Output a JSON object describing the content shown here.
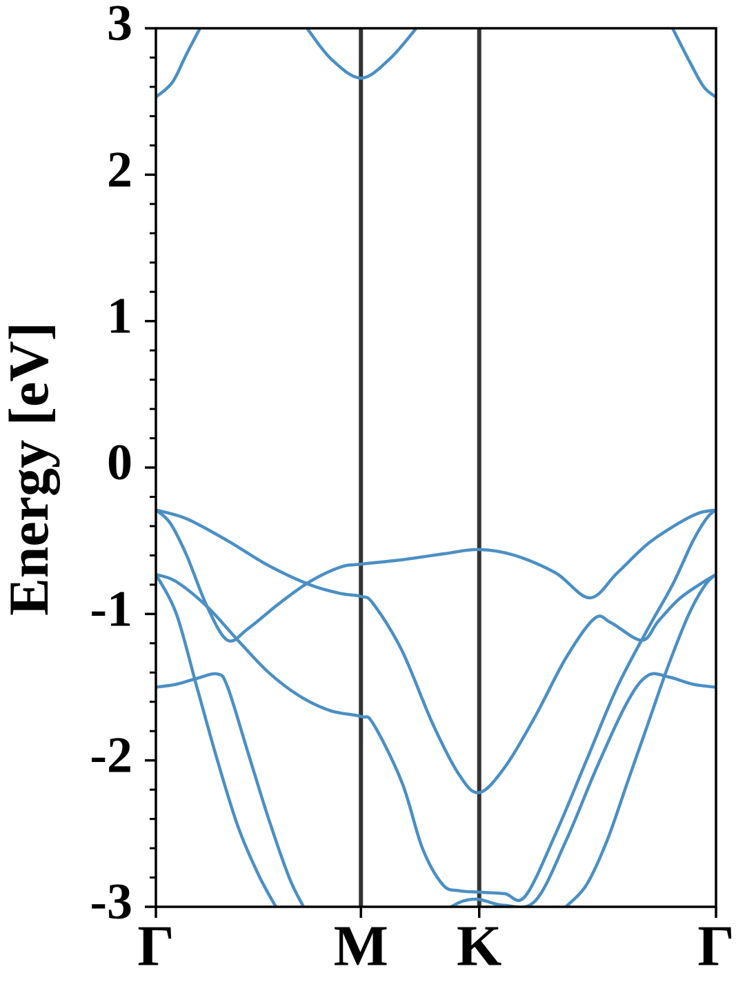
{
  "chart_data": {
    "type": "line",
    "ylabel": "Energy [eV]",
    "xlim": [
      0,
      2.732
    ],
    "xticks": [
      {
        "value": 0,
        "label": "Γ"
      },
      {
        "value": 1,
        "label": "M"
      },
      {
        "value": 1.577,
        "label": "K"
      },
      {
        "value": 2.732,
        "label": "Γ"
      }
    ],
    "xgrid": true,
    "ylim": [
      -3,
      3
    ],
    "yticks": [
      3,
      2,
      1,
      0,
      -1,
      -2,
      -3
    ],
    "yminorticks": [
      2.8,
      2.6,
      2.4,
      2.2,
      1.8,
      1.6,
      1.4,
      1.2,
      0.8,
      0.6,
      0.4,
      0.2,
      -0.2,
      -0.4,
      -0.6,
      -0.8,
      -1.2,
      -1.4,
      -1.6,
      -1.8,
      -2.2,
      -2.4,
      -2.6,
      -2.8
    ],
    "series": [
      {
        "color": "#4a8fc4",
        "x": [
          0,
          0.08,
          0.148,
          0.215,
          null,
          0.737,
          0.855,
          1,
          1.14,
          1.27,
          null,
          2.52,
          2.604,
          2.672,
          2.732
        ],
        "values": [
          2.53,
          2.63,
          2.82,
          3,
          null,
          3,
          2.79,
          2.66,
          2.79,
          3,
          null,
          3,
          2.77,
          2.6,
          2.53
        ]
      },
      {
        "color": "#4a8fc4",
        "x": [
          0,
          0.15,
          0.35,
          0.55,
          0.75,
          0.9,
          1,
          1.06,
          1.2,
          1.35,
          1.48,
          1.577,
          1.7,
          1.85,
          2.0,
          2.14,
          2.22,
          2.37,
          2.45,
          2.55,
          2.65,
          2.732
        ],
        "values": [
          -0.29,
          -0.35,
          -0.5,
          -0.67,
          -0.8,
          -0.86,
          -0.88,
          -0.93,
          -1.25,
          -1.75,
          -2.1,
          -2.22,
          -2.05,
          -1.7,
          -1.3,
          -1.03,
          -1.06,
          -1.18,
          -1.05,
          -0.9,
          -0.8,
          -0.73
        ]
      },
      {
        "color": "#4a8fc4",
        "x": [
          0,
          0.07,
          0.15,
          0.25,
          0.35,
          0.45,
          0.6,
          0.75,
          0.9,
          1,
          1.2,
          1.4,
          1.577,
          1.75,
          1.95,
          2.116,
          2.25,
          2.4,
          2.55,
          2.65,
          2.732
        ],
        "values": [
          -0.29,
          -0.38,
          -0.6,
          -0.95,
          -1.18,
          -1.1,
          -0.93,
          -0.78,
          -0.68,
          -0.66,
          -0.63,
          -0.59,
          -0.56,
          -0.6,
          -0.72,
          -0.89,
          -0.72,
          -0.52,
          -0.38,
          -0.31,
          -0.29
        ]
      },
      {
        "color": "#4a8fc4",
        "x": [
          0,
          0.1,
          0.25,
          0.4,
          0.55,
          0.7,
          0.85,
          1,
          1.06,
          1.2,
          1.3,
          1.4,
          1.48,
          1.577,
          1.7,
          1.8,
          1.95,
          2.1,
          2.25,
          2.4,
          2.52,
          2.62,
          2.69,
          2.732
        ],
        "values": [
          -0.73,
          -0.78,
          -0.95,
          -1.18,
          -1.4,
          -1.56,
          -1.66,
          -1.7,
          -1.75,
          -2.15,
          -2.6,
          -2.85,
          -2.89,
          -2.9,
          -2.91,
          -2.93,
          -2.5,
          -2.0,
          -1.5,
          -1.1,
          -0.8,
          -0.5,
          -0.34,
          -0.29
        ]
      },
      {
        "color": "#4a8fc4",
        "x": [
          0,
          0.1,
          0.2,
          0.3,
          0.4,
          0.5,
          0.585,
          null,
          1.44,
          1.5,
          1.577,
          1.7,
          1.85,
          2.0,
          2.15,
          2.3,
          2.4,
          2.5,
          2.62,
          2.732
        ],
        "values": [
          -0.73,
          -1.0,
          -1.5,
          -2.0,
          -2.45,
          -2.78,
          -3,
          null,
          -3,
          -2.96,
          -2.95,
          -2.99,
          -2.96,
          -2.55,
          -2.05,
          -1.6,
          -1.42,
          -1.43,
          -1.48,
          -1.5
        ]
      },
      {
        "color": "#4a8fc4",
        "x": [
          0,
          0.1,
          0.2,
          0.3,
          0.35,
          0.45,
          0.55,
          0.65,
          0.72,
          null,
          2.0,
          2.1,
          2.2,
          2.3,
          2.4,
          2.5,
          2.6,
          2.68,
          2.732
        ],
        "values": [
          -1.5,
          -1.48,
          -1.44,
          -1.41,
          -1.5,
          -1.95,
          -2.4,
          -2.8,
          -3,
          null,
          -3,
          -2.85,
          -2.55,
          -2.15,
          -1.75,
          -1.35,
          -1.0,
          -0.8,
          -0.73
        ]
      }
    ]
  }
}
